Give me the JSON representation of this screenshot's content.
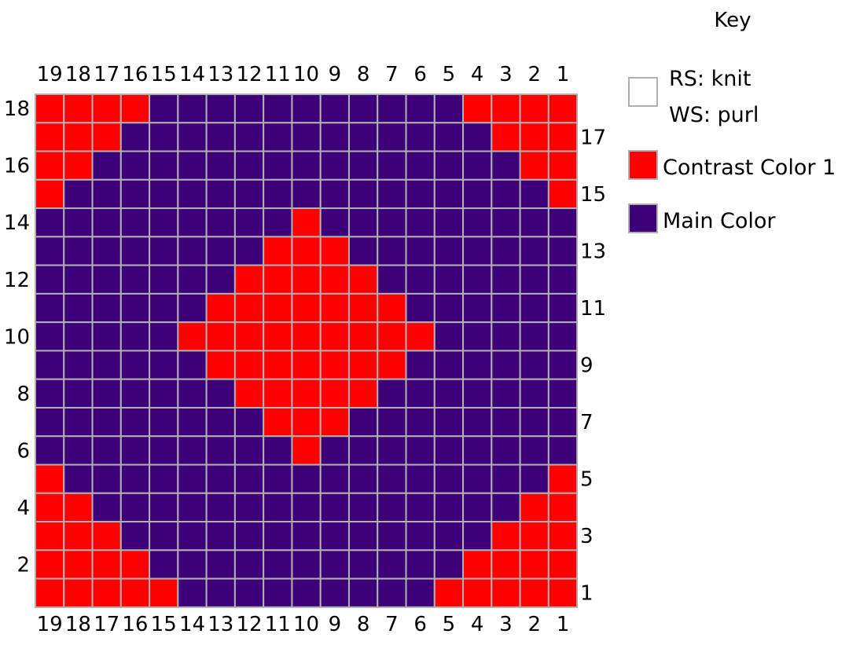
{
  "key": {
    "title": "Key",
    "items": [
      {
        "lines": [
          "RS: knit",
          "WS: purl"
        ],
        "color": "#ffffff",
        "border": "#b0b0b0"
      },
      {
        "lines": [
          "Contrast Color 1"
        ],
        "color": "#ff0000",
        "border": "#b0b0b0"
      },
      {
        "lines": [
          "Main Color"
        ],
        "color": "#3d0079",
        "border": "#b0b0b0"
      }
    ]
  },
  "chart_data": {
    "type": "heatmap",
    "stitches": 19,
    "rows": 18,
    "column_labels": [
      "19",
      "18",
      "17",
      "16",
      "15",
      "14",
      "13",
      "12",
      "11",
      "10",
      "9",
      "8",
      "7",
      "6",
      "5",
      "4",
      "3",
      "2",
      "1"
    ],
    "left_row_labels": [
      "18",
      "16",
      "14",
      "12",
      "10",
      "8",
      "6",
      "4",
      "2"
    ],
    "right_row_labels": [
      "17",
      "15",
      "13",
      "11",
      "9",
      "7",
      "5",
      "3",
      "1"
    ],
    "colors": {
      "M": "#3d0079",
      "C": "#ff0000"
    },
    "grid_color": "#b0b0b0",
    "grid_rows_top_to_bottom": [
      "CCCCMMMMMMMMMMMCCCC",
      "CCCMMMMMMMMMMMMMCCC",
      "CCMMMMMMMMMMMMMMMCC",
      "CMMMMMMMMMMMMMMMMMC",
      "MMMMMMMMMCMMMMMMMMM",
      "MMMMMMMMCCCMMMMMMMM",
      "MMMMMMMCCCCCMMMMMMM",
      "MMMMMMCCCCCCCMMMMMM",
      "MMMMMCCCCCCCCCMMMMM",
      "MMMMMMCCCCCCCMMMMMM",
      "MMMMMMMCCCCCMMMMMMM",
      "MMMMMMMMCCCMMMMMMMM",
      "MMMMMMMMMCMMMMMMMMM",
      "CMMMMMMMMMMMMMMMMMC",
      "CCMMMMMMMMMMMMMMMCC",
      "CCCMMMMMMMMMMMMMCCC",
      "CCCCMMMMMMMMMMMCCCC",
      "CCCCCMMMMMMMMMCCCCC"
    ]
  }
}
